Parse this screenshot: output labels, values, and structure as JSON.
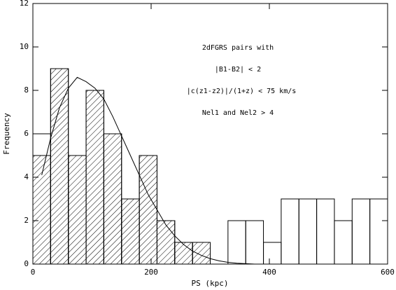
{
  "chart_data": {
    "type": "histogram",
    "xlabel": "PS (kpc)",
    "ylabel": "Frequency",
    "annotations": [
      "2dFGRS pairs with",
      "|B1-B2| < 2",
      "|c(z1-z2)|/(1+z) < 75 km/s",
      "Nel1 and Nel2 > 4"
    ],
    "bins": [
      0,
      30,
      60,
      90,
      120,
      150,
      180,
      210,
      240,
      270,
      300,
      330,
      360,
      390,
      420,
      450,
      480,
      510,
      540,
      570,
      600
    ],
    "series": [
      {
        "color": "#000000",
        "hatched": true,
        "values": [
          5,
          9,
          5,
          8,
          6,
          3,
          5,
          2,
          1,
          1,
          0,
          0,
          0,
          0,
          0,
          0,
          0,
          0,
          0,
          0
        ]
      },
      {
        "color": "#000000",
        "hatched": false,
        "values": [
          6,
          9,
          5,
          8,
          6,
          3,
          5,
          2,
          1,
          1,
          0,
          2,
          2,
          1,
          3,
          3,
          3,
          2,
          3,
          3
        ]
      }
    ],
    "curve": {
      "color": "#000000",
      "x": [
        15,
        30,
        45,
        60,
        75,
        90,
        105,
        120,
        135,
        150,
        165,
        180,
        195,
        210,
        225,
        240,
        255,
        270,
        285,
        300,
        315,
        330,
        345,
        360,
        375
      ],
      "values": [
        4.1,
        5.8,
        7.2,
        8.1,
        8.6,
        8.4,
        8.1,
        7.6,
        6.8,
        5.9,
        5.0,
        4.1,
        3.2,
        2.5,
        1.8,
        1.3,
        0.9,
        0.6,
        0.4,
        0.25,
        0.15,
        0.08,
        0.04,
        0.02,
        0
      ]
    },
    "xlim": [
      0,
      600
    ],
    "ylim": [
      0,
      12
    ],
    "xticks": [
      0,
      200,
      400,
      600
    ],
    "yticks": [
      0,
      2,
      4,
      6,
      8,
      10,
      12
    ]
  }
}
